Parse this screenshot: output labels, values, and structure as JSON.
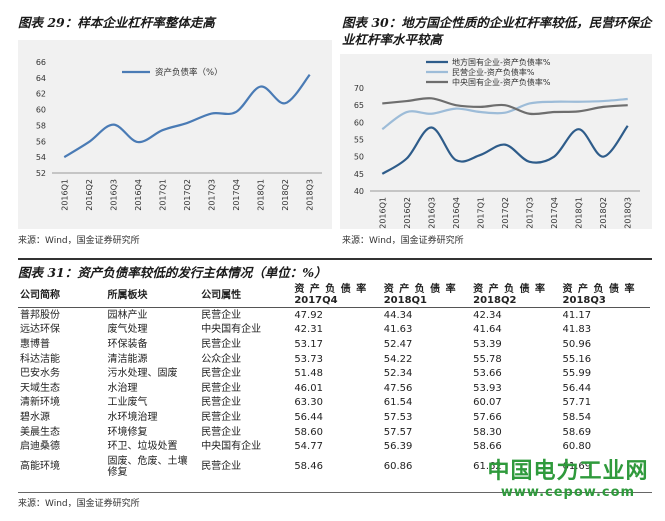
{
  "fig29": {
    "title": "图表 29：样本企业杠杆率整体走高",
    "source": "来源：Wind，国金证券研究所",
    "chart_data": {
      "type": "line",
      "categories": [
        "2016Q1",
        "2016Q2",
        "2016Q3",
        "2016Q4",
        "2017Q1",
        "2017Q2",
        "2017Q3",
        "2017Q4",
        "2018Q1",
        "2018Q2",
        "2018Q3"
      ],
      "series": [
        {
          "name": "资产负债率（%）",
          "values": [
            54.0,
            55.9,
            58.1,
            55.9,
            57.4,
            58.3,
            59.5,
            59.7,
            62.9,
            60.8,
            64.4
          ]
        }
      ],
      "ylim": [
        52,
        66
      ],
      "yticks": [
        "52",
        "54",
        "56",
        "58",
        "60",
        "62",
        "64",
        "66"
      ],
      "color": "#4a7bb5",
      "legend": "top-left"
    }
  },
  "fig30": {
    "title": "图表 30：地方国企性质的企业杠杆率较低，民营环保企业杠杆率水平较高",
    "source": "来源：Wind，国金证券研究所",
    "chart_data": {
      "type": "line",
      "categories": [
        "2016Q1",
        "2016Q2",
        "2016Q3",
        "2016Q4",
        "2017Q1",
        "2017Q2",
        "2017Q3",
        "2017Q4",
        "2018Q1",
        "2018Q2",
        "2018Q3"
      ],
      "series": [
        {
          "name": "地方国有企业-资产负债率%",
          "color": "#2e5c8a",
          "values": [
            45,
            49.5,
            58.5,
            49,
            50.5,
            53.5,
            48.5,
            50,
            58,
            50,
            59
          ]
        },
        {
          "name": "民营企业-资产负债率%",
          "color": "#9dbcd8",
          "values": [
            58,
            63,
            62.5,
            64,
            63,
            62.8,
            65.5,
            66,
            66,
            66.2,
            66.8
          ]
        },
        {
          "name": "中央国有企业-资产负债率%",
          "color": "#6e6e6e",
          "values": [
            65.5,
            66.2,
            67,
            65,
            64.5,
            65,
            62.5,
            63,
            63.2,
            64.5,
            65
          ]
        }
      ],
      "ylim": [
        40,
        70
      ],
      "yticks": [
        "40",
        "45",
        "50",
        "55",
        "60",
        "65",
        "70"
      ],
      "legend": "top-right"
    }
  },
  "fig31": {
    "title": "图表 31：资产负债率较低的发行主体情况（单位：%）",
    "source": "来源：Wind，国金证券研究所",
    "headers": [
      "公司简称",
      "所属板块",
      "公司属性",
      "资产负债率 2017Q4",
      "资产负债率 2018Q1",
      "资产负债率 2018Q2",
      "资产负债率 2018Q3"
    ],
    "header_top": "资 产 负 债 率",
    "header_periods": [
      "2017Q4",
      "2018Q1",
      "2018Q2",
      "2018Q3"
    ],
    "rows": [
      [
        "普邦股份",
        "园林产业",
        "民营企业",
        "47.92",
        "44.34",
        "42.34",
        "41.17"
      ],
      [
        "远达环保",
        "废气处理",
        "中央国有企业",
        "42.31",
        "41.63",
        "41.64",
        "41.83"
      ],
      [
        "惠博普",
        "环保装备",
        "民营企业",
        "53.17",
        "52.47",
        "53.39",
        "50.96"
      ],
      [
        "科达洁能",
        "清洁能源",
        "公众企业",
        "53.73",
        "54.22",
        "55.78",
        "55.16"
      ],
      [
        "巴安水务",
        "污水处理、固废",
        "民营企业",
        "51.48",
        "52.34",
        "53.66",
        "55.99"
      ],
      [
        "天域生态",
        "水治理",
        "民营企业",
        "46.01",
        "47.56",
        "53.93",
        "56.44"
      ],
      [
        "清新环境",
        "工业废气",
        "民营企业",
        "63.30",
        "61.54",
        "60.07",
        "57.71"
      ],
      [
        "碧水源",
        "水环境治理",
        "民营企业",
        "56.44",
        "57.53",
        "57.66",
        "58.54"
      ],
      [
        "美晨生态",
        "环境修复",
        "民营企业",
        "58.60",
        "57.57",
        "58.30",
        "58.69"
      ],
      [
        "启迪桑德",
        "环卫、垃圾处置",
        "中央国有企业",
        "54.77",
        "56.39",
        "58.66",
        "60.80"
      ],
      [
        "高能环境",
        "固废、危废、土壤修复",
        "民营企业",
        "58.46",
        "60.86",
        "61.62",
        "61.69"
      ]
    ]
  },
  "watermark": {
    "cn": "中国电力工业网",
    "url": "www.cepow.com"
  }
}
